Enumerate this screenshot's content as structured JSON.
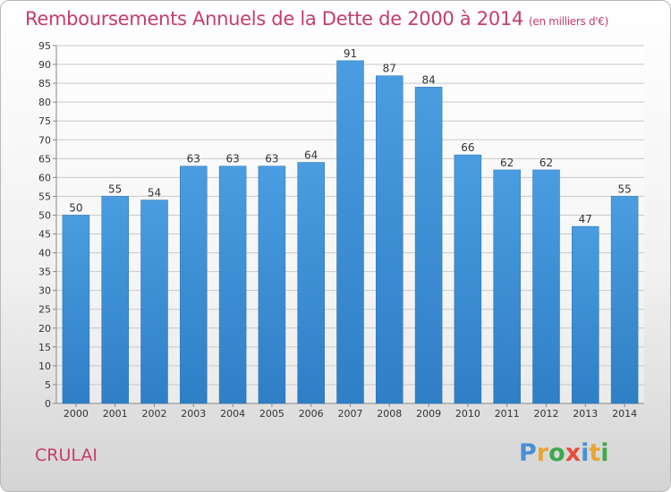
{
  "title": "Remboursements Annuels de la Dette de 2000 à 2014",
  "unit_note": "(en milliers d'€)",
  "commune": "CRULAI",
  "brand": {
    "letters": [
      "P",
      "r",
      "o",
      "x",
      "i",
      "t",
      "i"
    ],
    "colors": [
      "#4a8fd6",
      "#e8a531",
      "#3ea84a",
      "#e54c3c",
      "#4a8fd6",
      "#e8a531",
      "#3ea84a"
    ]
  },
  "colors": {
    "bar": "#4a9de0",
    "bar_dark": "#2f7fc6",
    "title": "#c63c6c",
    "grid": "#c8c8c8"
  },
  "chart_data": {
    "type": "bar",
    "categories": [
      "2000",
      "2001",
      "2002",
      "2003",
      "2004",
      "2005",
      "2006",
      "2007",
      "2008",
      "2009",
      "2010",
      "2011",
      "2012",
      "2013",
      "2014"
    ],
    "values": [
      50,
      55,
      54,
      63,
      63,
      63,
      64,
      91,
      87,
      84,
      66,
      62,
      62,
      47,
      55
    ],
    "ylim": [
      0,
      95
    ],
    "ytick_step": 5,
    "grid": true,
    "data_labels": true
  }
}
